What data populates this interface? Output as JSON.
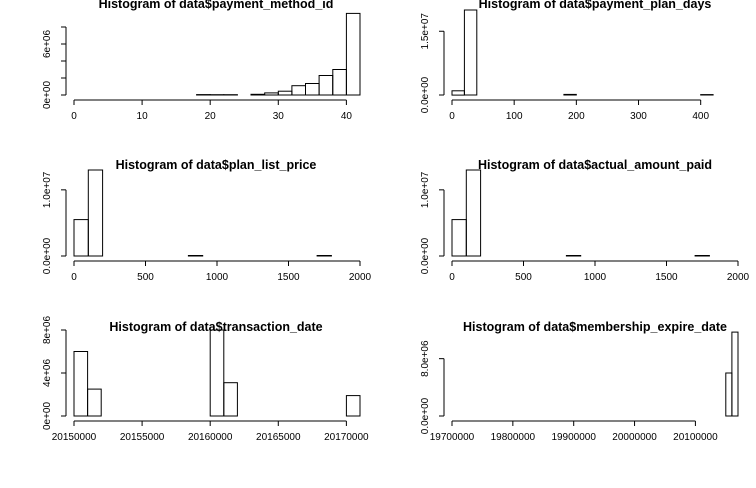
{
  "chart_data": [
    {
      "type": "bar",
      "title": "Histogram of data$payment_method_id",
      "bins": [
        {
          "x0": 0,
          "x1": 18,
          "value": 0
        },
        {
          "x0": 18,
          "x1": 20,
          "value": 50000
        },
        {
          "x0": 20,
          "x1": 22,
          "value": 30000
        },
        {
          "x0": 22,
          "x1": 24,
          "value": 40000
        },
        {
          "x0": 24,
          "x1": 26,
          "value": 0
        },
        {
          "x0": 26,
          "x1": 28,
          "value": 80000
        },
        {
          "x0": 28,
          "x1": 30,
          "value": 250000
        },
        {
          "x0": 30,
          "x1": 32,
          "value": 450000
        },
        {
          "x0": 32,
          "x1": 34,
          "value": 1100000
        },
        {
          "x0": 34,
          "x1": 36,
          "value": 1350000
        },
        {
          "x0": 36,
          "x1": 38,
          "value": 2300000
        },
        {
          "x0": 38,
          "x1": 40,
          "value": 3000000
        },
        {
          "x0": 40,
          "x1": 42,
          "value": 9600000
        }
      ],
      "xlim": [
        0,
        42
      ],
      "ylim": [
        0,
        10000000
      ],
      "xticks": [
        0,
        10,
        20,
        30,
        40
      ],
      "xtick_labels": [
        "0",
        "10",
        "20",
        "30",
        "40"
      ],
      "yticks": [
        0,
        2000000,
        4000000,
        6000000,
        8000000
      ],
      "ytick_labels": [
        "0e+00",
        "",
        "",
        "6e+06",
        ""
      ]
    },
    {
      "type": "bar",
      "title": "Histogram of data$payment_plan_days",
      "bins": [
        {
          "x0": 0,
          "x1": 20,
          "value": 1000000
        },
        {
          "x0": 20,
          "x1": 40,
          "value": 20000000
        },
        {
          "x0": 40,
          "x1": 180,
          "value": 0
        },
        {
          "x0": 180,
          "x1": 200,
          "value": 150000
        },
        {
          "x0": 200,
          "x1": 400,
          "value": 0
        },
        {
          "x0": 400,
          "x1": 420,
          "value": 100000
        },
        {
          "x0": 420,
          "x1": 460,
          "value": 0
        }
      ],
      "xlim": [
        0,
        460
      ],
      "ylim": [
        0,
        20000000
      ],
      "xticks": [
        0,
        100,
        200,
        300,
        400
      ],
      "xtick_labels": [
        "0",
        "100",
        "200",
        "300",
        "400"
      ],
      "yticks": [
        0,
        15000000
      ],
      "ytick_labels": [
        "0.0e+00",
        "1.5e+07"
      ]
    },
    {
      "type": "bar",
      "title": "Histogram of data$plan_list_price",
      "bins": [
        {
          "x0": 0,
          "x1": 100,
          "value": 5500000
        },
        {
          "x0": 100,
          "x1": 200,
          "value": 13000000
        },
        {
          "x0": 200,
          "x1": 800,
          "value": 0
        },
        {
          "x0": 800,
          "x1": 900,
          "value": 80000
        },
        {
          "x0": 900,
          "x1": 1700,
          "value": 0
        },
        {
          "x0": 1700,
          "x1": 1800,
          "value": 80000
        },
        {
          "x0": 1800,
          "x1": 2000,
          "value": 0
        }
      ],
      "xlim": [
        0,
        2000
      ],
      "ylim": [
        0,
        13000000
      ],
      "xticks": [
        0,
        500,
        1000,
        1500,
        2000
      ],
      "xtick_labels": [
        "0",
        "500",
        "1000",
        "1500",
        "2000"
      ],
      "yticks": [
        0,
        10000000
      ],
      "ytick_labels": [
        "0.0e+00",
        "1.0e+07"
      ]
    },
    {
      "type": "bar",
      "title": "Histogram of data$actual_amount_paid",
      "bins": [
        {
          "x0": 0,
          "x1": 100,
          "value": 5500000
        },
        {
          "x0": 100,
          "x1": 200,
          "value": 13000000
        },
        {
          "x0": 200,
          "x1": 800,
          "value": 0
        },
        {
          "x0": 800,
          "x1": 900,
          "value": 80000
        },
        {
          "x0": 900,
          "x1": 1700,
          "value": 0
        },
        {
          "x0": 1700,
          "x1": 1800,
          "value": 80000
        },
        {
          "x0": 1800,
          "x1": 2000,
          "value": 0
        }
      ],
      "xlim": [
        0,
        2000
      ],
      "ylim": [
        0,
        13000000
      ],
      "xticks": [
        0,
        500,
        1000,
        1500,
        2000
      ],
      "xtick_labels": [
        "0",
        "500",
        "1000",
        "1500",
        "2000"
      ],
      "yticks": [
        0,
        10000000
      ],
      "ytick_labels": [
        "0.0e+00",
        "1.0e+07"
      ]
    },
    {
      "type": "bar",
      "title": "Histogram of data$transaction_date",
      "bins": [
        {
          "x0": 20150000,
          "x1": 20151000,
          "value": 6000000
        },
        {
          "x0": 20151000,
          "x1": 20152000,
          "value": 2500000
        },
        {
          "x0": 20152000,
          "x1": 20160000,
          "value": 0
        },
        {
          "x0": 20160000,
          "x1": 20161000,
          "value": 8000000
        },
        {
          "x0": 20161000,
          "x1": 20162000,
          "value": 3100000
        },
        {
          "x0": 20162000,
          "x1": 20170000,
          "value": 0
        },
        {
          "x0": 20170000,
          "x1": 20171000,
          "value": 1900000
        }
      ],
      "xlim": [
        20150000,
        20171000
      ],
      "ylim": [
        0,
        8000000
      ],
      "xticks": [
        20150000,
        20155000,
        20160000,
        20165000,
        20170000
      ],
      "xtick_labels": [
        "20150000",
        "20155000",
        "20160000",
        "20165000",
        "20170000"
      ],
      "yticks": [
        0,
        4000000,
        8000000
      ],
      "ytick_labels": [
        "0e+00",
        "4e+06",
        "8e+06"
      ]
    },
    {
      "type": "bar",
      "title": "Histogram of data$membership_expire_date",
      "bins": [
        {
          "x0": 19700000,
          "x1": 20100000,
          "value": 0
        },
        {
          "x0": 20150000,
          "x1": 20160000,
          "value": 6000000
        },
        {
          "x0": 20160000,
          "x1": 20170000,
          "value": 11700000
        }
      ],
      "xlim": [
        19700000,
        20170000
      ],
      "ylim": [
        0,
        12000000
      ],
      "xticks": [
        19700000,
        19800000,
        19900000,
        20000000,
        20100000
      ],
      "xtick_labels": [
        "19700000",
        "19800000",
        "19900000",
        "20000000",
        "20100000"
      ],
      "yticks": [
        0,
        8000000
      ],
      "ytick_labels": [
        "0.0e+00",
        "8.0e+06"
      ]
    }
  ]
}
